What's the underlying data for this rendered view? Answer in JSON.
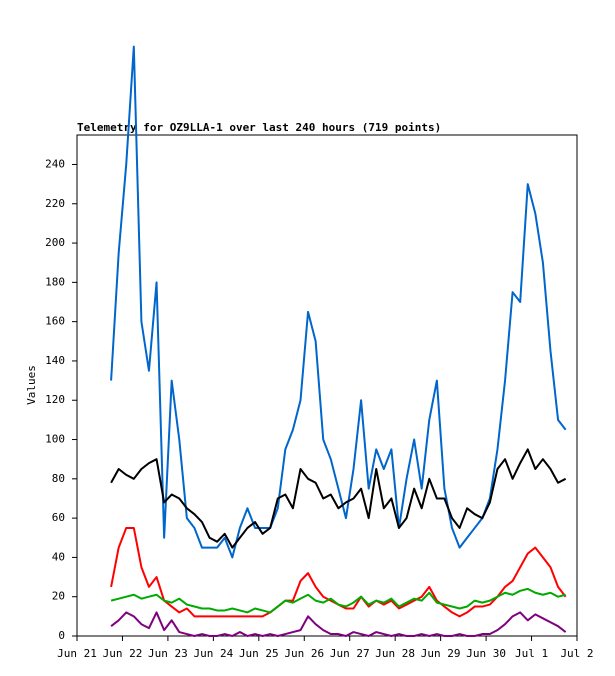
{
  "chart_data": {
    "type": "line",
    "title": "Telemetry for OZ9LLA-1 over last 240 hours (719 points)",
    "y_label": "Values",
    "x": [
      0.75,
      0.917,
      1.083,
      1.25,
      1.417,
      1.583,
      1.75,
      1.917,
      2.083,
      2.25,
      2.417,
      2.583,
      2.75,
      2.917,
      3.083,
      3.25,
      3.417,
      3.583,
      3.75,
      3.917,
      4.083,
      4.25,
      4.417,
      4.583,
      4.75,
      4.917,
      5.083,
      5.25,
      5.417,
      5.583,
      5.75,
      5.917,
      6.083,
      6.25,
      6.417,
      6.583,
      6.75,
      6.917,
      7.083,
      7.25,
      7.417,
      7.583,
      7.75,
      7.917,
      8.083,
      8.25,
      8.417,
      8.583,
      8.75,
      8.917,
      9.083,
      9.25,
      9.417,
      9.583,
      9.75,
      9.917,
      10.083,
      10.25,
      10.417,
      10.583,
      10.75
    ],
    "series": [
      {
        "color": "#0066cc",
        "values": [
          130,
          195,
          240,
          300,
          160,
          135,
          180,
          50,
          130,
          100,
          60,
          55,
          45,
          45,
          45,
          50,
          40,
          55,
          65,
          55,
          55,
          55,
          65,
          95,
          105,
          120,
          165,
          150,
          100,
          90,
          75,
          60,
          85,
          120,
          75,
          95,
          85,
          95,
          55,
          80,
          100,
          75,
          110,
          130,
          75,
          55,
          45,
          50,
          55,
          60,
          70,
          95,
          130,
          175,
          170,
          230,
          215,
          190,
          145,
          110,
          105
        ]
      },
      {
        "color": "#000000",
        "values": [
          78,
          85,
          82,
          80,
          85,
          88,
          90,
          68,
          72,
          70,
          65,
          62,
          58,
          50,
          48,
          52,
          45,
          50,
          55,
          58,
          52,
          55,
          70,
          72,
          65,
          85,
          80,
          78,
          70,
          72,
          65,
          68,
          70,
          75,
          60,
          85,
          65,
          70,
          55,
          60,
          75,
          65,
          80,
          70,
          70,
          60,
          55,
          65,
          62,
          60,
          68,
          85,
          90,
          80,
          88,
          95,
          85,
          90,
          85,
          78,
          80
        ]
      },
      {
        "color": "#ff0000",
        "values": [
          25,
          45,
          55,
          55,
          35,
          25,
          30,
          18,
          15,
          12,
          14,
          10,
          10,
          10,
          10,
          10,
          10,
          10,
          10,
          10,
          10,
          12,
          15,
          18,
          18,
          28,
          32,
          25,
          20,
          18,
          16,
          14,
          14,
          20,
          15,
          18,
          16,
          18,
          14,
          16,
          18,
          20,
          25,
          18,
          15,
          12,
          10,
          12,
          15,
          15,
          16,
          20,
          25,
          28,
          35,
          42,
          45,
          40,
          35,
          25,
          20
        ]
      },
      {
        "color": "#00aa00",
        "values": [
          18,
          19,
          20,
          21,
          19,
          20,
          21,
          18,
          17,
          19,
          16,
          15,
          14,
          14,
          13,
          13,
          14,
          13,
          12,
          14,
          13,
          12,
          15,
          18,
          17,
          19,
          21,
          18,
          17,
          19,
          16,
          15,
          17,
          20,
          16,
          18,
          17,
          19,
          15,
          17,
          19,
          18,
          22,
          17,
          16,
          15,
          14,
          15,
          18,
          17,
          18,
          20,
          22,
          21,
          23,
          24,
          22,
          21,
          22,
          20,
          21
        ]
      },
      {
        "color": "#800080",
        "values": [
          5,
          8,
          12,
          10,
          6,
          4,
          12,
          3,
          8,
          2,
          1,
          0,
          1,
          0,
          0,
          1,
          0,
          2,
          0,
          1,
          0,
          1,
          0,
          1,
          2,
          3,
          10,
          6,
          3,
          1,
          1,
          0,
          2,
          1,
          0,
          2,
          1,
          0,
          1,
          0,
          0,
          1,
          0,
          1,
          0,
          0,
          1,
          0,
          0,
          1,
          1,
          3,
          6,
          10,
          12,
          8,
          11,
          9,
          7,
          5,
          2
        ]
      }
    ],
    "xlim": [
      0,
      11
    ],
    "xticks": [
      {
        "value": 0,
        "label": "Jun 21"
      },
      {
        "value": 1,
        "label": "Jun 22"
      },
      {
        "value": 2,
        "label": "Jun 23"
      },
      {
        "value": 3,
        "label": "Jun 24"
      },
      {
        "value": 4,
        "label": "Jun 25"
      },
      {
        "value": 5,
        "label": "Jun 26"
      },
      {
        "value": 6,
        "label": "Jun 27"
      },
      {
        "value": 7,
        "label": "Jun 28"
      },
      {
        "value": 8,
        "label": "Jun 29"
      },
      {
        "value": 9,
        "label": "Jun 30"
      },
      {
        "value": 10,
        "label": "Jul 1"
      },
      {
        "value": 11,
        "label": "Jul 2"
      }
    ],
    "ylim": [
      0,
      255
    ],
    "yticks": [
      0,
      20,
      40,
      60,
      80,
      100,
      120,
      140,
      160,
      180,
      200,
      220,
      240
    ]
  }
}
